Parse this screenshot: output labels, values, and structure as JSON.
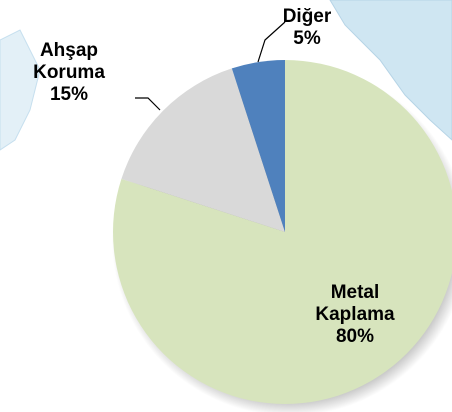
{
  "chart_data": {
    "type": "pie",
    "categories": [
      "Metal Kaplama",
      "Ahşap Koruma",
      "Diğer"
    ],
    "values": [
      80,
      15,
      5
    ],
    "value_labels": [
      "80%",
      "15%",
      "5%"
    ],
    "colors": [
      "#d7e4bd",
      "#d9d9d9",
      "#4f81bd"
    ]
  }
}
